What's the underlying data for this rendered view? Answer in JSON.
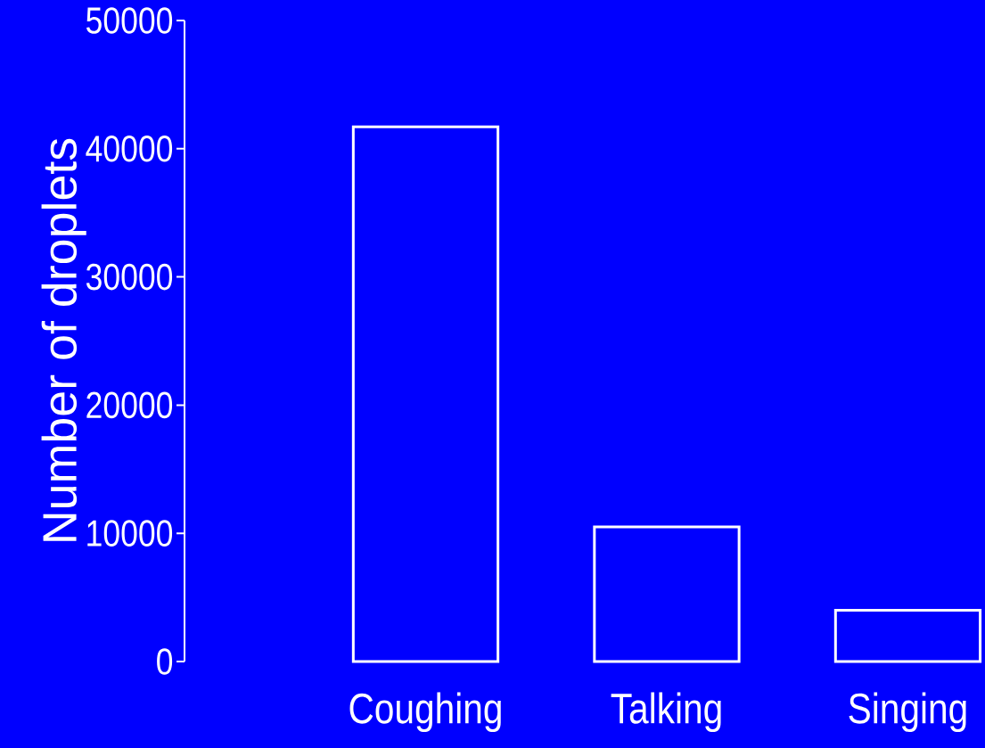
{
  "chart_data": {
    "type": "bar",
    "ylabel": "Number of droplets",
    "categories": [
      "Coughing",
      "Talking",
      "Singing"
    ],
    "values": [
      41700,
      10500,
      4000
    ],
    "color": "#ffffff",
    "ylim": [
      0,
      50000
    ],
    "yticks": [
      0,
      10000,
      20000,
      30000,
      40000,
      50000
    ]
  }
}
